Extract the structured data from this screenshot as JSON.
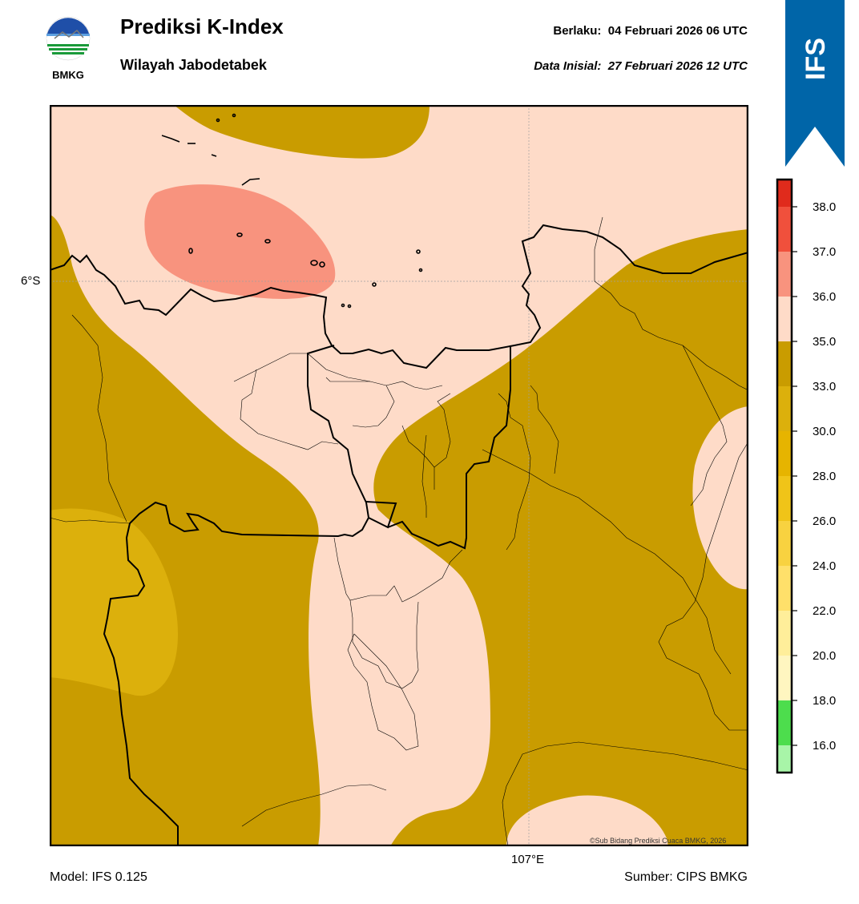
{
  "header": {
    "title": "Prediksi K-Index",
    "subtitle": "Wilayah Jabodetabek",
    "valid_label": "Berlaku:",
    "valid_time": "04 Februari 2026 06 UTC",
    "init_label": "Data Inisial:",
    "init_time": "27 Februari 2026 12 UTC"
  },
  "logo": {
    "text": "BMKG",
    "icon": "bmkg-logo"
  },
  "ribbon": {
    "text": "IFS",
    "color": "#0065a8"
  },
  "map": {
    "lat_label": "6°S",
    "lon_label": "107°E",
    "copyright": "©Sub Bidang Prediksi Cuaca BMKG, 2026",
    "colors": {
      "band_33_35": "#c99c00",
      "band_30_33": "#dcb00c",
      "band_35_36": "#fedbc8",
      "band_36_37": "#f8937e"
    }
  },
  "colorbar": {
    "ticks": [
      "38.0",
      "37.0",
      "36.0",
      "35.0",
      "33.0",
      "30.0",
      "28.0",
      "26.0",
      "24.0",
      "22.0",
      "20.0",
      "18.0",
      "16.0"
    ],
    "colors": [
      "#ffffff",
      "#a8f5a8",
      "#4ddd4d",
      "#fff6c0",
      "#ffee9a",
      "#ffe06a",
      "#f8d240",
      "#f0c418",
      "#e6b400",
      "#dcb00c",
      "#c99c00",
      "#fedbc8",
      "#f8937e",
      "#f0503c",
      "#e02b1c"
    ]
  },
  "footer": {
    "model": "Model: IFS 0.125",
    "source": "Sumber: CIPS BMKG"
  }
}
